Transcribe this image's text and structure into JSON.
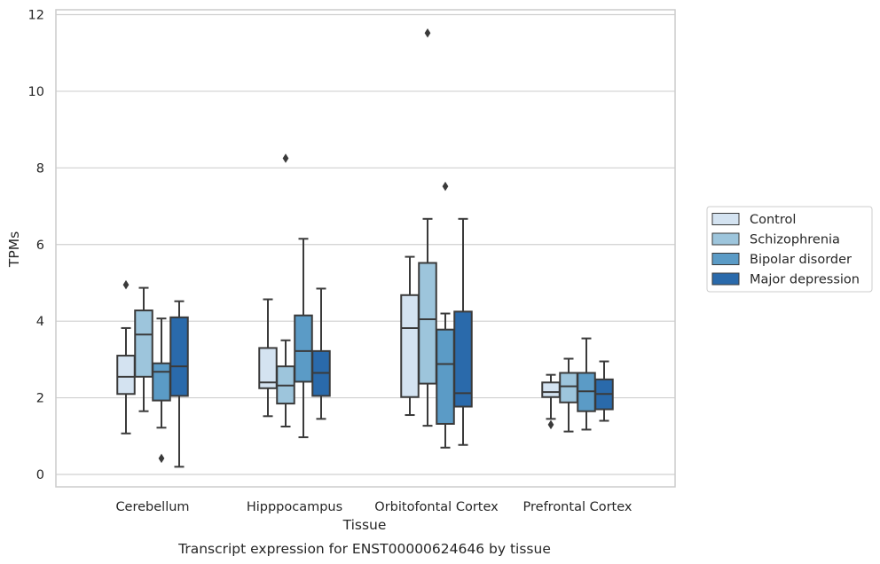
{
  "chart_data": {
    "type": "box",
    "xlabel": "Tissue",
    "ylabel": "TPMs",
    "caption": "Transcript expression for ENST00000624646 by tissue",
    "ylim": [
      -0.3,
      12.1
    ],
    "yticks": [
      0,
      2,
      4,
      6,
      8,
      10,
      12
    ],
    "grid": "horizontal",
    "legend_position": "outside-right",
    "categories": [
      "Cerebellum",
      "Hipppocampus",
      "Orbitofontal Cortex",
      "Prefrontal Cortex"
    ],
    "series": [
      {
        "name": "Control",
        "color": "#d4e3f1",
        "boxes": [
          {
            "whisker_low": 1.07,
            "q1": 2.1,
            "median": 2.55,
            "q3": 3.1,
            "whisker_high": 3.82,
            "outliers": [
              4.95
            ]
          },
          {
            "whisker_low": 1.52,
            "q1": 2.25,
            "median": 2.4,
            "q3": 3.3,
            "whisker_high": 4.57,
            "outliers": []
          },
          {
            "whisker_low": 1.55,
            "q1": 2.02,
            "median": 3.82,
            "q3": 4.68,
            "whisker_high": 5.68,
            "outliers": []
          },
          {
            "whisker_low": 1.45,
            "q1": 2.02,
            "median": 2.15,
            "q3": 2.4,
            "whisker_high": 2.6,
            "outliers": [
              1.3
            ]
          }
        ]
      },
      {
        "name": "Schizophrenia",
        "color": "#9dc5dc",
        "boxes": [
          {
            "whisker_low": 1.65,
            "q1": 2.55,
            "median": 3.65,
            "q3": 4.28,
            "whisker_high": 4.87,
            "outliers": []
          },
          {
            "whisker_low": 1.25,
            "q1": 1.85,
            "median": 2.32,
            "q3": 2.82,
            "whisker_high": 3.5,
            "outliers": [
              8.25
            ]
          },
          {
            "whisker_low": 1.27,
            "q1": 2.37,
            "median": 4.05,
            "q3": 5.52,
            "whisker_high": 6.67,
            "outliers": [
              11.52
            ]
          },
          {
            "whisker_low": 1.12,
            "q1": 1.88,
            "median": 2.3,
            "q3": 2.65,
            "whisker_high": 3.02,
            "outliers": []
          }
        ]
      },
      {
        "name": "Bipolar disorder",
        "color": "#5b9bc6",
        "boxes": [
          {
            "whisker_low": 1.22,
            "q1": 1.93,
            "median": 2.68,
            "q3": 2.9,
            "whisker_high": 4.07,
            "outliers": [
              0.42
            ]
          },
          {
            "whisker_low": 0.97,
            "q1": 2.42,
            "median": 3.22,
            "q3": 4.15,
            "whisker_high": 6.15,
            "outliers": []
          },
          {
            "whisker_low": 0.7,
            "q1": 1.32,
            "median": 2.88,
            "q3": 3.78,
            "whisker_high": 4.2,
            "outliers": [
              7.52
            ]
          },
          {
            "whisker_low": 1.17,
            "q1": 1.65,
            "median": 2.17,
            "q3": 2.65,
            "whisker_high": 3.55,
            "outliers": []
          }
        ]
      },
      {
        "name": "Major depression",
        "color": "#2a6aab",
        "boxes": [
          {
            "whisker_low": 0.2,
            "q1": 2.05,
            "median": 2.82,
            "q3": 4.1,
            "whisker_high": 4.52,
            "outliers": []
          },
          {
            "whisker_low": 1.45,
            "q1": 2.05,
            "median": 2.65,
            "q3": 3.22,
            "whisker_high": 4.85,
            "outliers": []
          },
          {
            "whisker_low": 0.77,
            "q1": 1.77,
            "median": 2.12,
            "q3": 4.25,
            "whisker_high": 6.67,
            "outliers": []
          },
          {
            "whisker_low": 1.4,
            "q1": 1.7,
            "median": 2.1,
            "q3": 2.48,
            "whisker_high": 2.95,
            "outliers": []
          }
        ]
      }
    ]
  }
}
